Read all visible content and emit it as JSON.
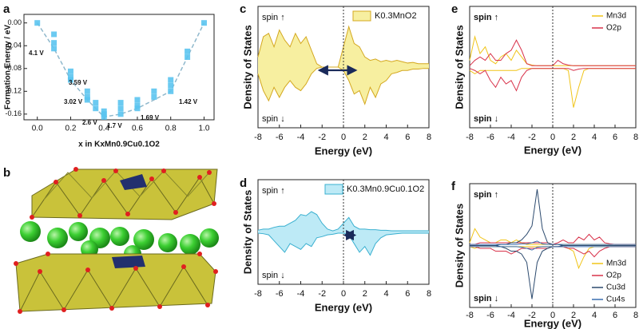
{
  "chart_data": [
    {
      "panel": "a",
      "type": "scatter",
      "xlabel": "x in KxMn0.9Cu0.1O2",
      "ylabel": "Formation Energy / eV",
      "xlim": [
        -0.08,
        1.06
      ],
      "ylim": [
        -0.17,
        0.015
      ],
      "xticks": [
        {
          "value": 0,
          "label": "0.0"
        },
        {
          "value": 0.2,
          "label": "0.2"
        },
        {
          "value": 0.4,
          "label": "0.4"
        },
        {
          "value": 0.6,
          "label": "0.6"
        },
        {
          "value": 0.8,
          "label": "0.8"
        },
        {
          "value": 1,
          "label": "1.0"
        }
      ],
      "yticks": [
        {
          "value": 0,
          "label": "0.00"
        },
        {
          "value": -0.04,
          "label": "-0.04"
        },
        {
          "value": -0.08,
          "label": "-0.08"
        },
        {
          "value": -0.12,
          "label": "-0.12"
        },
        {
          "value": -0.16,
          "label": "-0.16"
        }
      ],
      "series": [
        {
          "color": "#5bc4ef",
          "x": [
            0,
            0.1,
            0.1,
            0.1,
            0.2,
            0.2,
            0.2,
            0.3,
            0.3,
            0.3,
            0.35,
            0.35,
            0.4,
            0.4,
            0.4,
            0.5,
            0.5,
            0.5,
            0.6,
            0.6,
            0.6,
            0.7,
            0.7,
            0.8,
            0.8,
            0.8,
            0.9,
            0.9,
            1
          ],
          "values": [
            0,
            -0.02,
            -0.035,
            -0.045,
            -0.085,
            -0.095,
            -0.1,
            -0.12,
            -0.13,
            -0.135,
            -0.14,
            -0.15,
            -0.155,
            -0.16,
            -0.165,
            -0.14,
            -0.15,
            -0.16,
            -0.135,
            -0.145,
            -0.15,
            -0.12,
            -0.13,
            -0.1,
            -0.11,
            -0.12,
            -0.05,
            -0.06,
            0
          ]
        }
      ],
      "hull": {
        "color": "#8fb8cc",
        "x": [
          0,
          0.1,
          0.2,
          0.3,
          0.4,
          0.5,
          0.6,
          0.8,
          0.9,
          1
        ],
        "values": [
          0,
          -0.045,
          -0.1,
          -0.135,
          -0.165,
          -0.16,
          -0.15,
          -0.12,
          -0.06,
          0
        ]
      },
      "annotations": [
        "4.1 V",
        "3.59 V",
        "3.02 V",
        "2.6 V",
        "1.7 V",
        "1.69 V",
        "1.42 V"
      ]
    },
    {
      "panel": "c",
      "type": "dos",
      "xlabel": "Energy (eV)",
      "ylabel": "Density of States",
      "spin_up": "spin ↑",
      "spin_down": "spin ↓",
      "xlim": [
        -8,
        8
      ],
      "ylim": [
        -0.9,
        0.9
      ],
      "xticks": [
        -8,
        -6,
        -4,
        -2,
        0,
        2,
        4,
        6,
        8
      ],
      "vline": 0,
      "arrow": [
        -2.4,
        1.3
      ],
      "legend": "top-right",
      "x": [
        -8,
        -7.5,
        -7,
        -6.5,
        -6,
        -5.5,
        -5,
        -4.5,
        -4,
        -3.5,
        -3,
        -2.5,
        -2,
        -1.5,
        -1,
        -0.5,
        0,
        0.5,
        1,
        1.5,
        2,
        2.5,
        3,
        3.5,
        4,
        4.5,
        5,
        5.5,
        6,
        6.5,
        7,
        7.5,
        8
      ],
      "series": [
        {
          "name": "K0.3MnO2",
          "color": "#d4a820",
          "fill": "#f7efa0",
          "values": [
            0.15,
            0.45,
            0.5,
            0.3,
            0.55,
            0.4,
            0.3,
            0.5,
            0.35,
            0.45,
            0.25,
            0.05,
            0,
            0,
            0,
            0,
            0.3,
            0.6,
            0.35,
            0.3,
            0.15,
            0.1,
            0.12,
            0.08,
            0.1,
            0.08,
            0.1,
            0.08,
            0.06,
            0.07,
            0.05,
            0.05,
            0.05
          ],
          "values_down": [
            -0.1,
            -0.35,
            -0.5,
            -0.3,
            -0.45,
            -0.3,
            -0.2,
            -0.3,
            -0.35,
            -0.25,
            -0.1,
            -0.02,
            0,
            0,
            0,
            0,
            -0.05,
            -0.2,
            -0.4,
            -0.35,
            -0.55,
            -0.3,
            -0.45,
            -0.25,
            -0.2,
            -0.1,
            -0.08,
            -0.05,
            -0.05,
            -0.03,
            -0.03,
            -0.02,
            -0.02
          ]
        }
      ]
    },
    {
      "panel": "d",
      "type": "dos",
      "xlabel": "Energy (eV)",
      "ylabel": "Density of States",
      "spin_up": "spin ↑",
      "spin_down": "spin ↓",
      "xlim": [
        -8,
        8
      ],
      "ylim": [
        -0.9,
        0.9
      ],
      "xticks": [
        -8,
        -6,
        -4,
        -2,
        0,
        2,
        4,
        6,
        8
      ],
      "vline": 0,
      "arrow": [
        0,
        1.2
      ],
      "legend": "top-right",
      "x": [
        -8,
        -7.5,
        -7,
        -6.5,
        -6,
        -5.5,
        -5,
        -4.5,
        -4,
        -3.5,
        -3,
        -2.5,
        -2,
        -1.5,
        -1,
        -0.5,
        0,
        0.5,
        1,
        1.5,
        2,
        2.5,
        3,
        3.5,
        4,
        4.5,
        5,
        5.5,
        6,
        6.5,
        7,
        7.5,
        8
      ],
      "series": [
        {
          "name": "K0.3Mn0.9Cu0.1O2",
          "color": "#3ab0d0",
          "fill": "#bdeaf6",
          "values": [
            0.03,
            0.05,
            0.05,
            0.08,
            0.1,
            0.1,
            0.15,
            0.2,
            0.3,
            0.28,
            0.35,
            0.3,
            0.15,
            0.05,
            0.02,
            0.05,
            0.15,
            0.25,
            0.1,
            0.05,
            0.05,
            0.04,
            0.04,
            0.03,
            0.03,
            0.02,
            0.02,
            0.02,
            0.02,
            0.02,
            0.02,
            0.02,
            0.02
          ],
          "values_down": [
            -0.02,
            -0.03,
            -0.05,
            -0.15,
            -0.25,
            -0.35,
            -0.2,
            -0.25,
            -0.3,
            -0.2,
            -0.25,
            -0.1,
            -0.08,
            -0.05,
            -0.04,
            -0.02,
            -0.02,
            -0.05,
            -0.2,
            -0.35,
            -0.25,
            -0.4,
            -0.2,
            -0.1,
            -0.05,
            -0.04,
            -0.03,
            -0.02,
            -0.02,
            -0.02,
            -0.02,
            -0.02,
            -0.02
          ]
        }
      ]
    },
    {
      "panel": "e",
      "type": "dos",
      "xlabel": "Energy (eV)",
      "ylabel": "Density of States",
      "spin_up": "spin ↑",
      "spin_down": "spin ↓",
      "xlim": [
        -8,
        8
      ],
      "ylim": [
        -0.9,
        0.9
      ],
      "xticks": [
        -8,
        -6,
        -4,
        -2,
        0,
        2,
        4,
        6,
        8
      ],
      "vline": 0,
      "legend": "top-right",
      "x": [
        -8,
        -7.5,
        -7,
        -6.5,
        -6,
        -5.5,
        -5,
        -4.5,
        -4,
        -3.5,
        -3,
        -2.5,
        -2,
        -1.5,
        -1,
        -0.5,
        0,
        0.5,
        1,
        1.5,
        2,
        2.5,
        3,
        3.5,
        4,
        4.5,
        5,
        5.5,
        6,
        6.5,
        7,
        7.5,
        8
      ],
      "series": [
        {
          "name": "Mn3d",
          "color": "#f0c419",
          "values": [
            0.1,
            0.45,
            0.2,
            0.3,
            0.1,
            0.05,
            0.15,
            0.2,
            0.1,
            0.25,
            0.15,
            0.05,
            0.03,
            0.02,
            0.02,
            0.02,
            0.02,
            0.02,
            0.02,
            0.02,
            0.02,
            0.02,
            0.02,
            0.02,
            0.02,
            0.02,
            0.02,
            0.02,
            0.02,
            0.02,
            0.02,
            0.02,
            0.02
          ],
          "values_down": [
            -0.05,
            -0.1,
            -0.05,
            -0.05,
            -0.05,
            -0.05,
            -0.05,
            -0.05,
            -0.05,
            -0.05,
            -0.02,
            -0.02,
            -0.02,
            -0.02,
            -0.02,
            -0.02,
            -0.02,
            -0.02,
            -0.02,
            -0.05,
            -0.6,
            -0.3,
            -0.05,
            -0.02,
            -0.02,
            -0.02,
            -0.02,
            -0.02,
            -0.02,
            -0.02,
            -0.02,
            -0.02,
            -0.02
          ]
        },
        {
          "name": "O2p",
          "color": "#d8324a",
          "values": [
            0.02,
            0.1,
            0.15,
            0.1,
            0.2,
            0.1,
            0.1,
            0.2,
            0.25,
            0.4,
            0.25,
            0.05,
            0.02,
            0.02,
            0.02,
            0.02,
            0.02,
            0.1,
            0.05,
            0.03,
            0.02,
            0.02,
            0.02,
            0.02,
            0.02,
            0.02,
            0.02,
            0.02,
            0.02,
            0.02,
            0.02,
            0.02,
            0.02
          ],
          "values_down": [
            -0.02,
            -0.05,
            -0.1,
            -0.05,
            -0.2,
            -0.3,
            -0.15,
            -0.25,
            -0.2,
            -0.35,
            -0.15,
            -0.05,
            -0.02,
            -0.02,
            -0.02,
            -0.02,
            -0.02,
            -0.02,
            -0.02,
            -0.02,
            -0.05,
            -0.03,
            -0.02,
            -0.02,
            -0.02,
            -0.02,
            -0.02,
            -0.02,
            -0.02,
            -0.02,
            -0.02,
            -0.02,
            -0.02
          ]
        }
      ]
    },
    {
      "panel": "f",
      "type": "dos",
      "xlabel": "Energy (eV)",
      "ylabel": "Density of States",
      "spin_up": "spin ↑",
      "spin_down": "spin ↓",
      "xlim": [
        -8,
        8
      ],
      "ylim": [
        -1.1,
        1.1
      ],
      "xticks": [
        -8,
        -6,
        -4,
        -2,
        0,
        2,
        4,
        6,
        8
      ],
      "vline": 0,
      "legend": "right",
      "x": [
        -8,
        -7.5,
        -7,
        -6.5,
        -6,
        -5.5,
        -5,
        -4.5,
        -4,
        -3.5,
        -3,
        -2.5,
        -2,
        -1.5,
        -1,
        -0.5,
        0,
        0.5,
        1,
        1.5,
        2,
        2.5,
        3,
        3.5,
        4,
        4.5,
        5,
        5.5,
        6,
        6.5,
        7,
        7.5,
        8
      ],
      "series": [
        {
          "name": "Mn3d",
          "color": "#f0c419",
          "values": [
            0.05,
            0.3,
            0.15,
            0.1,
            0.05,
            0.05,
            0.1,
            0.1,
            0.05,
            0.1,
            0.05,
            0.02,
            0.02,
            0.02,
            0.02,
            0.02,
            0.02,
            0.02,
            0.02,
            0.02,
            0.02,
            0.02,
            0.02,
            0.02,
            0.02,
            0.02,
            0.02,
            0.02,
            0.02,
            0.02,
            0.02,
            0.02,
            0.02
          ],
          "values_down": [
            -0.02,
            -0.05,
            -0.02,
            -0.02,
            -0.02,
            -0.02,
            -0.02,
            -0.02,
            -0.02,
            -0.02,
            -0.02,
            -0.02,
            -0.02,
            -0.02,
            -0.02,
            -0.02,
            -0.02,
            -0.02,
            -0.02,
            -0.05,
            -0.1,
            -0.4,
            -0.2,
            -0.05,
            -0.02,
            -0.02,
            -0.02,
            -0.02,
            -0.02,
            -0.02,
            -0.02,
            -0.02,
            -0.02
          ]
        },
        {
          "name": "O2p",
          "color": "#d8324a",
          "values": [
            0.02,
            0.02,
            0.05,
            0.05,
            0.05,
            0.05,
            0.05,
            0.05,
            0.05,
            0.05,
            0.05,
            0.05,
            0.05,
            0.05,
            0.05,
            0.05,
            0.02,
            0.05,
            0.1,
            0.05,
            0.05,
            0.15,
            0.1,
            0.2,
            0.1,
            0.15,
            0.05,
            0.03,
            0.02,
            0.02,
            0.02,
            0.02,
            0.02
          ],
          "values_down": [
            -0.02,
            -0.02,
            -0.05,
            -0.05,
            -0.05,
            -0.1,
            -0.1,
            -0.1,
            -0.15,
            -0.1,
            -0.05,
            -0.05,
            -0.05,
            -0.05,
            -0.05,
            -0.05,
            -0.02,
            -0.02,
            -0.02,
            -0.05,
            -0.05,
            -0.1,
            -0.15,
            -0.1,
            -0.2,
            -0.1,
            -0.05,
            -0.02,
            -0.02,
            -0.02,
            -0.02,
            -0.02,
            -0.02
          ]
        },
        {
          "name": "Cu3d",
          "color": "#2c4a6e",
          "values": [
            0,
            0,
            0,
            0,
            0,
            0,
            0.02,
            0.02,
            0.05,
            0.05,
            0.1,
            0.2,
            0.35,
            1.0,
            0.3,
            0.05,
            0.02,
            0.02,
            0,
            0,
            0,
            0,
            0,
            0,
            0,
            0,
            0,
            0,
            0,
            0,
            0,
            0,
            0
          ],
          "values_down": [
            0,
            0,
            0,
            0,
            0,
            0,
            -0.02,
            -0.05,
            -0.1,
            -0.1,
            -0.15,
            -0.3,
            -0.95,
            -0.3,
            -0.1,
            -0.05,
            -0.02,
            -0.02,
            0,
            0,
            0,
            0,
            0,
            0,
            0,
            0,
            0,
            0,
            0,
            0,
            0,
            0,
            0
          ]
        },
        {
          "name": "Cu4s",
          "color": "#3a6fb0",
          "values": [
            0.02,
            0.02,
            0.02,
            0.02,
            0.02,
            0.02,
            0.02,
            0.02,
            0.02,
            0.02,
            0.03,
            0.03,
            0.05,
            0.08,
            0.03,
            0.02,
            0.02,
            0.02,
            0.02,
            0.02,
            0.02,
            0.02,
            0.02,
            0.02,
            0.02,
            0.02,
            0.02,
            0.02,
            0.02,
            0.02,
            0.02,
            0.02,
            0.02
          ],
          "values_down": [
            -0.02,
            -0.02,
            -0.02,
            -0.02,
            -0.02,
            -0.02,
            -0.02,
            -0.02,
            -0.02,
            -0.02,
            -0.03,
            -0.05,
            -0.08,
            -0.03,
            -0.02,
            -0.02,
            -0.02,
            -0.02,
            -0.02,
            -0.02,
            -0.02,
            -0.02,
            -0.02,
            -0.02,
            -0.02,
            -0.02,
            -0.02,
            -0.02,
            -0.02,
            -0.02,
            -0.02,
            -0.02,
            -0.02
          ]
        }
      ]
    }
  ],
  "structure": {
    "panel": "b"
  }
}
